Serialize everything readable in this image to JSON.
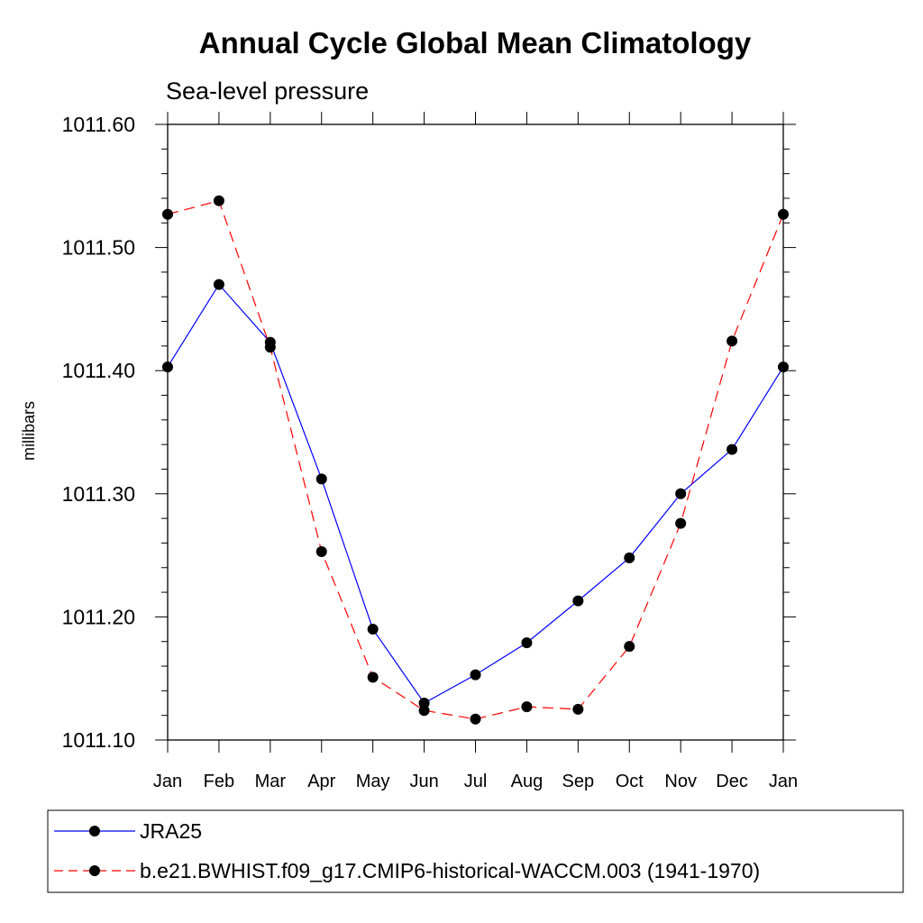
{
  "chart_data": {
    "type": "line",
    "title": "Annual Cycle Global Mean Climatology",
    "subtitle": "Sea-level pressure",
    "ylabel": "millibars",
    "xlabel": "",
    "categories": [
      "Jan",
      "Feb",
      "Mar",
      "Apr",
      "May",
      "Jun",
      "Jul",
      "Aug",
      "Sep",
      "Oct",
      "Nov",
      "Dec",
      "Jan"
    ],
    "ylim": [
      1011.1,
      1011.6
    ],
    "yticks": [
      "1011.10",
      "1011.20",
      "1011.30",
      "1011.40",
      "1011.50",
      "1011.60"
    ],
    "legend_position": "bottom",
    "series": [
      {
        "name": "JRA25",
        "color": "#0000ff",
        "line_style": "solid",
        "values": [
          1011.403,
          1011.47,
          1011.423,
          1011.312,
          1011.19,
          1011.13,
          1011.153,
          1011.179,
          1011.213,
          1011.248,
          1011.3,
          1011.336,
          1011.403
        ]
      },
      {
        "name": "b.e21.BWHIST.f09_g17.CMIP6-historical-WACCM.003 (1941-1970)",
        "color": "#ff0000",
        "line_style": "dashed",
        "values": [
          1011.527,
          1011.538,
          1011.419,
          1011.253,
          1011.151,
          1011.124,
          1011.117,
          1011.127,
          1011.125,
          1011.176,
          1011.276,
          1011.424,
          1011.527
        ]
      }
    ]
  }
}
